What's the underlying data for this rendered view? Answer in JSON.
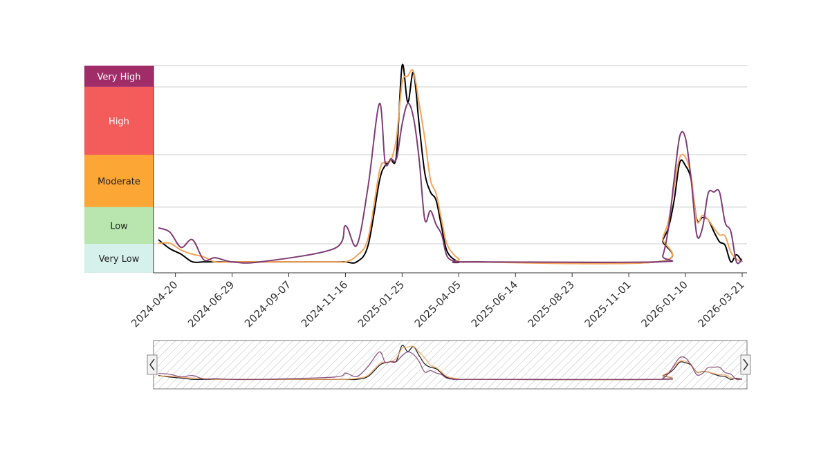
{
  "chart_data": {
    "type": "line",
    "levels": [
      {
        "label": "Very High",
        "from": 8.97,
        "to": 10,
        "color": "#a12d68",
        "text_color": "#ffffff"
      },
      {
        "label": "High",
        "from": 5.7,
        "to": 8.97,
        "color": "#f45b5b",
        "text_color": "#ffffff"
      },
      {
        "label": "Moderate",
        "from": 3.17,
        "to": 5.7,
        "color": "#fca635",
        "text_color": "#222222"
      },
      {
        "label": "Low",
        "from": 1.4,
        "to": 3.17,
        "color": "#b8e6ae",
        "text_color": "#222222"
      },
      {
        "label": "Very Low",
        "from": 0,
        "to": 1.4,
        "color": "#d6f0eb",
        "text_color": "#222222"
      }
    ],
    "x": [
      "2024-03-30",
      "2024-04-13",
      "2024-04-27",
      "2024-05-11",
      "2024-05-25",
      "2024-06-08",
      "2024-06-29",
      "2024-08-03",
      "2024-11-02",
      "2024-11-16",
      "2024-11-30",
      "2024-12-14",
      "2024-12-28",
      "2025-01-04",
      "2025-01-11",
      "2025-01-18",
      "2025-01-25",
      "2025-02-01",
      "2025-02-08",
      "2025-02-15",
      "2025-02-22",
      "2025-03-01",
      "2025-03-08",
      "2025-03-15",
      "2025-03-22",
      "2025-04-05",
      "2025-04-19",
      "2025-12-06",
      "2025-12-13",
      "2025-12-20",
      "2025-12-27",
      "2026-01-03",
      "2026-01-10",
      "2026-01-17",
      "2026-01-24",
      "2026-01-31",
      "2026-02-07",
      "2026-02-14",
      "2026-02-21",
      "2026-02-28",
      "2026-03-07",
      "2026-03-14",
      "2026-03-21"
    ],
    "series": [
      {
        "color": "#000000",
        "width": 2,
        "values": [
          1.6,
          1.17,
          0.9,
          0.53,
          0.53,
          0.53,
          0.53,
          0.53,
          0.53,
          0.53,
          0.53,
          1.33,
          4.43,
          5.17,
          5.43,
          5.67,
          10,
          8.23,
          9.67,
          7.17,
          4.83,
          3.9,
          3.5,
          2.17,
          1,
          0.53,
          0.53,
          0.53,
          1.57,
          2.17,
          3.5,
          5.33,
          5.17,
          4.5,
          2.57,
          2.67,
          2.57,
          2,
          1.5,
          1.33,
          0.53,
          0.87,
          0.53
        ]
      },
      {
        "color": "#f5a35a",
        "width": 2,
        "values": [
          1.43,
          1.43,
          1.1,
          0.9,
          0.77,
          0.53,
          0.53,
          0.53,
          0.53,
          0.53,
          0.83,
          1.67,
          4.9,
          5.33,
          5.43,
          6.5,
          9.17,
          9.5,
          9.73,
          8.17,
          6.5,
          4.5,
          3.83,
          2.5,
          1.33,
          0.67,
          0.53,
          0.53,
          1.67,
          2.5,
          4.17,
          5.57,
          5.57,
          4.67,
          2.5,
          2.77,
          2.57,
          2.17,
          1.83,
          1.77,
          1,
          0.67,
          0.53
        ]
      },
      {
        "color": "#7f3b76",
        "width": 2,
        "values": [
          2.17,
          1.97,
          1.23,
          1.6,
          0.63,
          0.73,
          0.53,
          0.53,
          1.17,
          2.27,
          1.33,
          4.17,
          8.17,
          5.33,
          5.5,
          5.5,
          7.17,
          8.17,
          7.5,
          5.5,
          2.57,
          3,
          2.33,
          1.83,
          0.77,
          0.53,
          0.53,
          0.53,
          0.83,
          2.17,
          4.5,
          6.6,
          6.5,
          4.5,
          1.83,
          2.17,
          3.83,
          3.9,
          3.9,
          2.43,
          2,
          0.53,
          0.67
        ]
      }
    ],
    "xlim": [
      "2024-03-24",
      "2026-03-27"
    ],
    "ylim": [
      0,
      10
    ],
    "xticks": [
      "2024-04-20",
      "2024-06-29",
      "2024-09-07",
      "2024-11-16",
      "2025-01-25",
      "2025-04-05",
      "2025-06-14",
      "2025-08-23",
      "2025-11-01",
      "2026-01-10",
      "2026-03-21"
    ]
  }
}
